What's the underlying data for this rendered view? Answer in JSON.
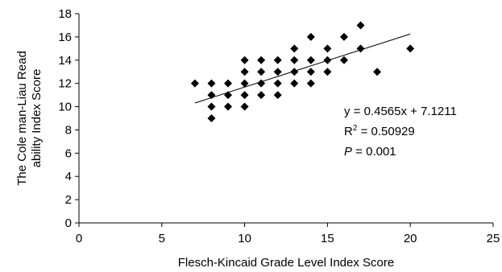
{
  "chart_data": {
    "type": "scatter",
    "title": "",
    "xlabel": "Flesch-Kincaid Grade Level Index Score",
    "ylabel_lines": [
      "The Cole man-Liau Read",
      "ability Index Score"
    ],
    "xlim": [
      0,
      25
    ],
    "ylim": [
      0,
      18
    ],
    "xticks": [
      0,
      5,
      10,
      15,
      20,
      25
    ],
    "yticks": [
      0,
      2,
      4,
      6,
      8,
      10,
      12,
      14,
      16,
      18
    ],
    "grid": false,
    "legend": "none",
    "marker": "diamond",
    "marker_color": "#000000",
    "points": [
      {
        "x": 7,
        "y": 12
      },
      {
        "x": 8,
        "y": 9
      },
      {
        "x": 8,
        "y": 10
      },
      {
        "x": 8,
        "y": 11
      },
      {
        "x": 8,
        "y": 12
      },
      {
        "x": 9,
        "y": 10
      },
      {
        "x": 9,
        "y": 11
      },
      {
        "x": 9,
        "y": 12
      },
      {
        "x": 10,
        "y": 10
      },
      {
        "x": 10,
        "y": 11
      },
      {
        "x": 10,
        "y": 12
      },
      {
        "x": 10,
        "y": 13
      },
      {
        "x": 10,
        "y": 14
      },
      {
        "x": 11,
        "y": 11
      },
      {
        "x": 11,
        "y": 12
      },
      {
        "x": 11,
        "y": 13
      },
      {
        "x": 11,
        "y": 14
      },
      {
        "x": 12,
        "y": 11
      },
      {
        "x": 12,
        "y": 12
      },
      {
        "x": 12,
        "y": 13
      },
      {
        "x": 12,
        "y": 14
      },
      {
        "x": 13,
        "y": 12
      },
      {
        "x": 13,
        "y": 13
      },
      {
        "x": 13,
        "y": 14
      },
      {
        "x": 13,
        "y": 15
      },
      {
        "x": 14,
        "y": 12
      },
      {
        "x": 14,
        "y": 13
      },
      {
        "x": 14,
        "y": 14
      },
      {
        "x": 14,
        "y": 16
      },
      {
        "x": 15,
        "y": 13
      },
      {
        "x": 15,
        "y": 14
      },
      {
        "x": 15,
        "y": 15
      },
      {
        "x": 16,
        "y": 14
      },
      {
        "x": 16,
        "y": 16
      },
      {
        "x": 17,
        "y": 15
      },
      {
        "x": 17,
        "y": 17
      },
      {
        "x": 18,
        "y": 13
      },
      {
        "x": 20,
        "y": 15
      }
    ],
    "trendline": {
      "slope": 0.4565,
      "intercept": 7.1211,
      "x_range": [
        7,
        20
      ]
    },
    "annotations": {
      "equation": "y = 0.4565x + 7.1211",
      "r2_base": "R",
      "r2_sup": "2",
      "r2_value": " = 0.50929",
      "p_letter": "P",
      "p_value": " = 0.001"
    }
  }
}
